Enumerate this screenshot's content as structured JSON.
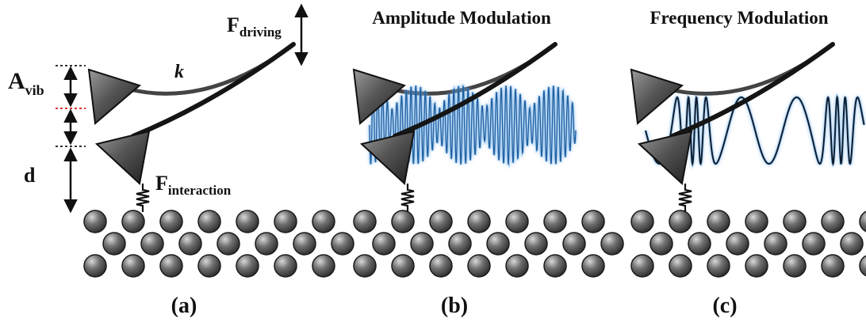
{
  "panels": [
    {
      "id": "a",
      "caption": "(a)",
      "title": "",
      "labels": {
        "driving_main": "F",
        "driving_sub": "driving",
        "spring_constant": "k",
        "amplitude_main": "A",
        "amplitude_sub": "vib",
        "distance": "d",
        "interaction_main": "F",
        "interaction_sub": "interaction"
      }
    },
    {
      "id": "b",
      "caption": "(b)",
      "title": "Amplitude Modulation"
    },
    {
      "id": "c",
      "caption": "(c)",
      "title": "Frequency Modulation"
    }
  ],
  "colors": {
    "cantilever": "#151515",
    "tip_fill": "#5a5a5a",
    "atom_fill": "#6a6a6a",
    "wave": "#1f5f9e",
    "wave_glow": "#6fb0ee",
    "rest_marker": "#e03030",
    "reference_marker": "#333333"
  },
  "icons": {
    "tip": "pyramid-tip-icon",
    "spring": "spring-icon",
    "atom": "atom-sphere-icon"
  }
}
